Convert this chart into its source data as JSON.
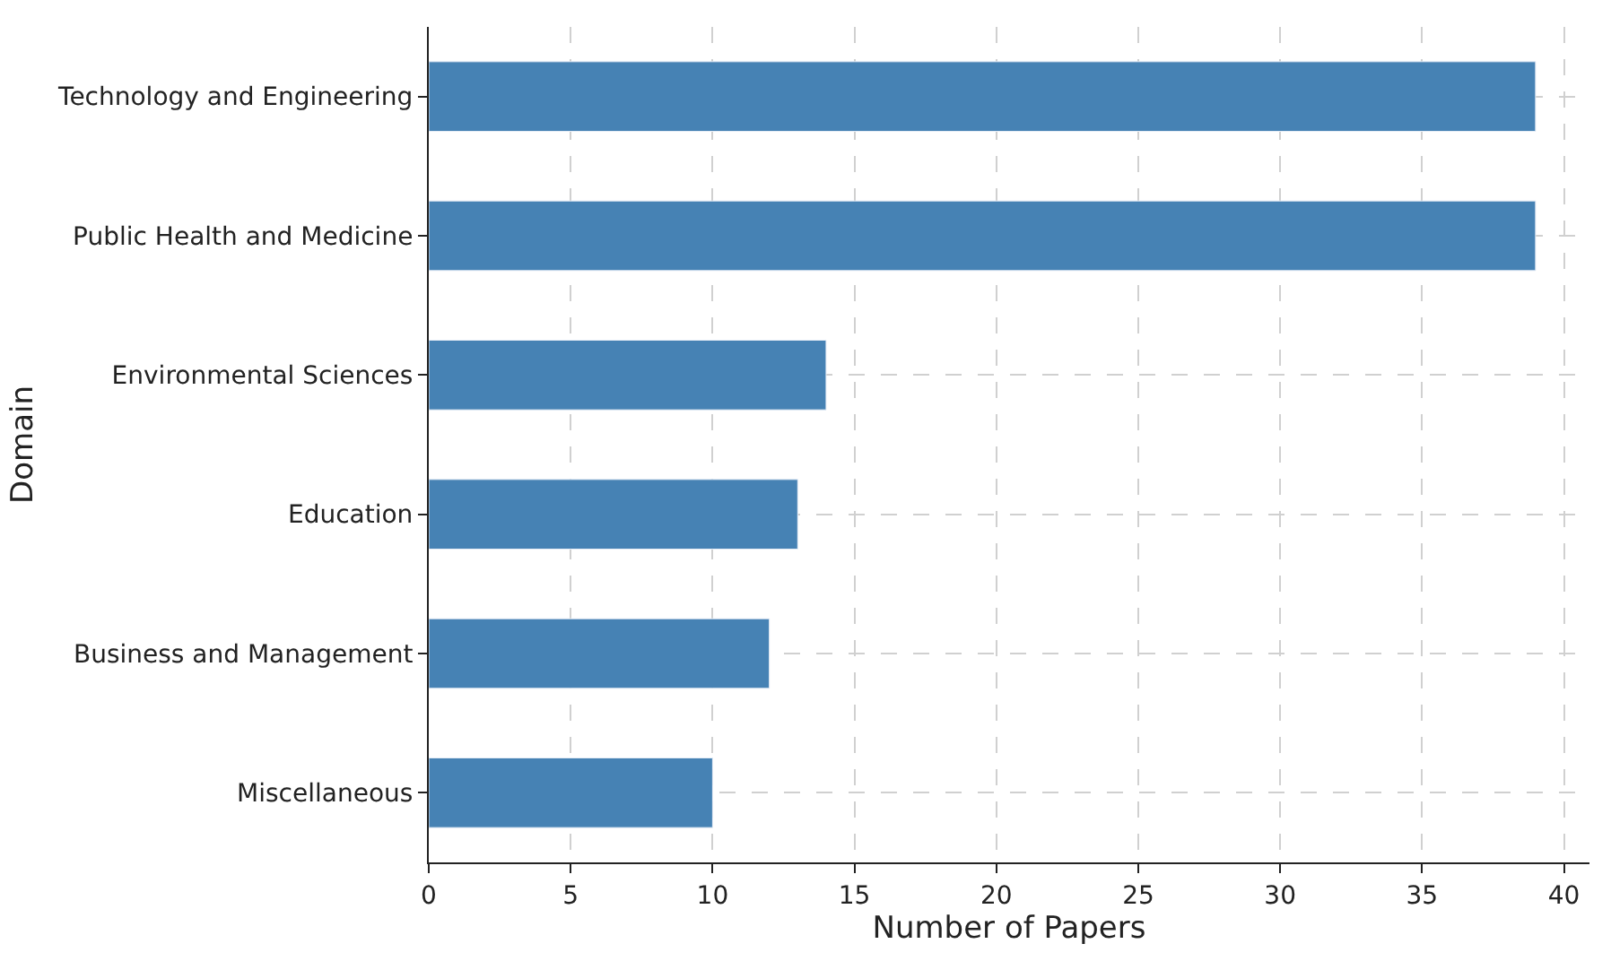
{
  "chart_data": {
    "type": "bar",
    "orientation": "horizontal",
    "xlabel": "Number of Papers",
    "ylabel": "Domain",
    "categories": [
      "Technology and Engineering",
      "Public Health and Medicine",
      "Environmental Sciences",
      "Education",
      "Business and Management",
      "Miscellaneous"
    ],
    "values": [
      39,
      39,
      14,
      13,
      12,
      10
    ],
    "color": "#4682b4",
    "xlim": [
      0,
      40.9
    ],
    "xticks": [
      0,
      5,
      10,
      15,
      20,
      25,
      30,
      35,
      40
    ],
    "grid": true,
    "legend": false
  }
}
